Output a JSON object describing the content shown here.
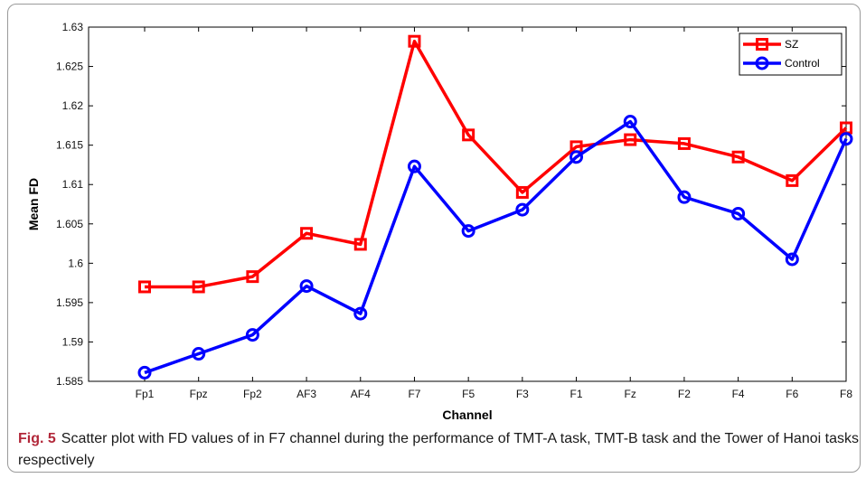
{
  "caption": {
    "label": "Fig. 5",
    "text": "Scatter plot with FD values of in F7 channel during the performance of TMT-A task, TMT-B task and the Tower of Hanoi tasks respectively"
  },
  "chart_data": {
    "type": "line",
    "title": "",
    "xlabel": "Channel",
    "ylabel": "Mean FD",
    "categories": [
      "Fp1",
      "Fpz",
      "Fp2",
      "AF3",
      "AF4",
      "F7",
      "F5",
      "F3",
      "F1",
      "Fz",
      "F2",
      "F4",
      "F6",
      "F8"
    ],
    "ylim": [
      1.585,
      1.63
    ],
    "yticks": [
      "1.585",
      "1.59",
      "1.595",
      "1.6",
      "1.605",
      "1.61",
      "1.615",
      "1.62",
      "1.625",
      "1.63"
    ],
    "grid": false,
    "legend_position": "top-right",
    "series": [
      {
        "name": "SZ",
        "color": "#ff0000",
        "marker": "square",
        "values": [
          1.597,
          1.597,
          1.5983,
          1.6038,
          1.6024,
          1.6282,
          1.6163,
          1.609,
          1.6148,
          1.6157,
          1.6152,
          1.6135,
          1.6105,
          1.6172
        ]
      },
      {
        "name": "Control",
        "color": "#0000ff",
        "marker": "circle",
        "values": [
          1.5861,
          1.5885,
          1.5909,
          1.5971,
          1.5936,
          1.6123,
          1.6041,
          1.6068,
          1.6135,
          1.618,
          1.6084,
          1.6063,
          1.6005,
          1.6158
        ]
      }
    ]
  }
}
